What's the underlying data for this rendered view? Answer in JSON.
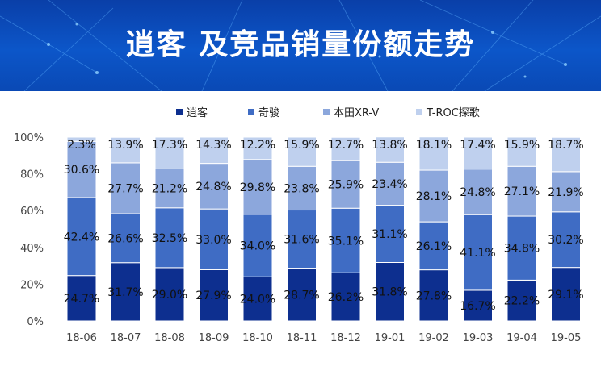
{
  "page": {
    "title": "逍客 及竞品销量份额走势"
  },
  "chart_data": {
    "type": "bar",
    "stacked": true,
    "categories": [
      "18-06",
      "18-07",
      "18-08",
      "18-09",
      "18-10",
      "18-11",
      "18-12",
      "19-01",
      "19-02",
      "19-03",
      "19-04",
      "19-05"
    ],
    "series": [
      {
        "name": "逍客",
        "color": "#0d2f8f",
        "values": [
          24.7,
          31.7,
          29.0,
          27.9,
          24.0,
          28.7,
          26.2,
          31.8,
          27.8,
          16.7,
          22.2,
          29.1
        ],
        "labels": [
          "24.7%",
          "31.7%",
          "29.0%",
          "27.9%",
          "24.0%",
          "28.7%",
          "26.2%",
          "31.8%",
          "27.8%",
          "16.7%",
          "22.2%",
          "29.1%"
        ]
      },
      {
        "name": "奇骏",
        "color": "#3f6cc4",
        "values": [
          42.4,
          26.6,
          32.5,
          33.0,
          34.0,
          31.6,
          35.1,
          31.1,
          26.1,
          41.1,
          34.8,
          30.2
        ],
        "labels": [
          "42.4%",
          "26.6%",
          "32.5%",
          "33.0%",
          "34.0%",
          "31.6%",
          "35.1%",
          "31.1%",
          "26.1%",
          "41.1%",
          "34.8%",
          "30.2%"
        ]
      },
      {
        "name": "本田XR-V",
        "color": "#8ca7dc",
        "values": [
          30.6,
          27.7,
          21.2,
          24.8,
          29.8,
          23.8,
          25.9,
          23.4,
          28.1,
          24.8,
          27.1,
          21.9
        ],
        "labels": [
          "30.6%",
          "27.7%",
          "21.2%",
          "24.8%",
          "29.8%",
          "23.8%",
          "25.9%",
          "23.4%",
          "28.1%",
          "24.8%",
          "27.1%",
          "21.9%"
        ]
      },
      {
        "name": "T-ROC探歌",
        "color": "#bfd0ee",
        "values": [
          2.3,
          13.9,
          17.3,
          14.3,
          12.2,
          15.9,
          12.7,
          13.8,
          18.1,
          17.4,
          15.9,
          18.7
        ],
        "labels": [
          "2.3%",
          "13.9%",
          "17.3%",
          "14.3%",
          "12.2%",
          "15.9%",
          "12.7%",
          "13.8%",
          "18.1%",
          "17.4%",
          "15.9%",
          "18.7%"
        ]
      }
    ],
    "yticks": [
      "0%",
      "20%",
      "40%",
      "60%",
      "80%",
      "100%"
    ],
    "ylim": [
      0,
      100
    ],
    "legend_position": "top",
    "grid": false
  }
}
